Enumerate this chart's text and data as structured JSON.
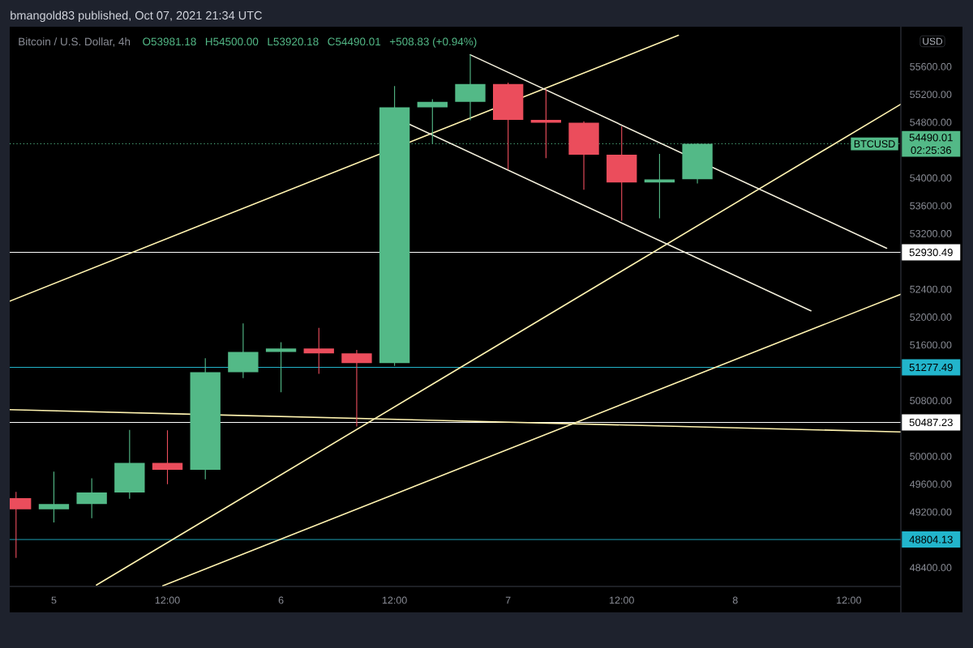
{
  "chart_data": {
    "type": "candlestick",
    "title": "bmangold83 published, Oct 07, 2021 21:34 UTC",
    "subtitle": "Bitcoin / U.S. Dollar, 4h",
    "ylabel": "USD",
    "x": [
      "2021-10-04T20:00",
      "2021-10-05T00:00",
      "2021-10-05T04:00",
      "2021-10-05T08:00",
      "2021-10-05T12:00",
      "2021-10-05T16:00",
      "2021-10-05T20:00",
      "2021-10-06T00:00",
      "2021-10-06T04:00",
      "2021-10-06T08:00",
      "2021-10-06T12:00",
      "2021-10-06T16:00",
      "2021-10-06T20:00",
      "2021-10-07T00:00",
      "2021-10-07T04:00",
      "2021-10-07T08:00",
      "2021-10-07T12:00",
      "2021-10-07T16:00",
      "2021-10-07T20:00"
    ],
    "ohlc": [
      [
        49400,
        49490,
        48540,
        49240
      ],
      [
        49240,
        49780,
        49050,
        49315
      ],
      [
        49315,
        49685,
        49110,
        49480
      ],
      [
        49480,
        50380,
        49390,
        49905
      ],
      [
        49905,
        50375,
        49600,
        49805
      ],
      [
        49805,
        51410,
        49670,
        51210
      ],
      [
        51210,
        51910,
        51125,
        51500
      ],
      [
        51500,
        51640,
        50920,
        51550
      ],
      [
        51550,
        51845,
        51185,
        51480
      ],
      [
        51480,
        51530,
        50430,
        51340
      ],
      [
        51340,
        55320,
        51300,
        55015
      ],
      [
        55015,
        55130,
        54490,
        55095
      ],
      [
        55095,
        55775,
        54830,
        55350
      ],
      [
        55350,
        55370,
        54120,
        54835
      ],
      [
        54835,
        55275,
        54285,
        54795
      ],
      [
        54795,
        54815,
        53830,
        54335
      ],
      [
        54335,
        54740,
        53385,
        53935
      ],
      [
        53935,
        54345,
        53420,
        53980
      ],
      [
        53981.18,
        54500.0,
        53920.18,
        54490.01
      ]
    ],
    "colors": [
      "#eb4d5c",
      "#53b987",
      "#53b987",
      "#53b987",
      "#eb4d5c",
      "#53b987",
      "#53b987",
      "#53b987",
      "#eb4d5c",
      "#eb4d5c",
      "#53b987",
      "#53b987",
      "#53b987",
      "#eb4d5c",
      "#eb4d5c",
      "#eb4d5c",
      "#eb4d5c",
      "#53b987",
      "#53b987"
    ],
    "series": [
      {
        "type": "line",
        "color": "#fff3b0",
        "x": [
          "2021-10-04T19:20",
          "2021-10-07T18:00"
        ],
        "values": [
          52230,
          56050
        ]
      },
      {
        "type": "line",
        "color": "#fff3b0",
        "x": [
          "2021-10-05T04:30",
          "2021-10-08T17:30"
        ],
        "values": [
          48150,
          55060
        ]
      },
      {
        "type": "line",
        "color": "#fff3b0",
        "x": [
          "2021-10-05T11:30",
          "2021-10-08T17:30"
        ],
        "values": [
          48140,
          52330
        ]
      },
      {
        "type": "line",
        "color": "#fff3b0",
        "x": [
          "2021-10-04T19:20",
          "2021-10-08T17:30"
        ],
        "values": [
          50670,
          50350
        ]
      },
      {
        "type": "line",
        "color": "#f3efdc",
        "x": [
          "2021-10-06T20:00",
          "2021-10-08T16:00"
        ],
        "values": [
          55770,
          52990
        ]
      },
      {
        "type": "line",
        "color": "#f3efdc",
        "x": [
          "2021-10-06T13:35",
          "2021-10-08T08:00"
        ],
        "values": [
          54770,
          52090
        ]
      }
    ],
    "ref_lines": [
      {
        "axis": "y",
        "value": 54490.01,
        "label": "54490.01",
        "color": "#53b987",
        "line_style": "dotted"
      },
      {
        "axis": "y",
        "value": 52930.49,
        "label": "52930.49",
        "color": "#ffffff",
        "line_style": "solid"
      },
      {
        "axis": "y",
        "value": 51277.49,
        "label": "51277.49",
        "color": "#22b5cc",
        "line_style": "solid"
      },
      {
        "axis": "y",
        "value": 50487.23,
        "label": "50487.23",
        "color": "#ffffff",
        "line_style": "solid"
      },
      {
        "axis": "y",
        "value": 48804.13,
        "label": "48804.13",
        "color": "#22b5cc",
        "line_style": "solid"
      }
    ],
    "annotations": [
      "O53981.18",
      "H54500.00",
      "L53920.18",
      "C54490.01",
      "+508.83 (+0.94%)",
      {
        "text": "BTCUSD",
        "y": 54490.01
      },
      "02:25:36"
    ],
    "xlim": [
      "2021-10-04T19:20",
      "2021-10-08T17:30"
    ],
    "ylim": [
      48130,
      56150
    ],
    "xticks": [
      {
        "value": "2021-10-05",
        "label": "5"
      },
      {
        "value": "2021-10-05T12:00",
        "label": "12:00"
      },
      {
        "value": "2021-10-06",
        "label": "6"
      },
      {
        "value": "2021-10-06T12:00",
        "label": "12:00"
      },
      {
        "value": "2021-10-07",
        "label": "7"
      },
      {
        "value": "2021-10-07T12:00",
        "label": "12:00"
      },
      {
        "value": "2021-10-08",
        "label": "8"
      },
      {
        "value": "2021-10-08T12:00",
        "label": "12:00"
      }
    ],
    "yticks": [
      {
        "value": 48400,
        "label": "48400.00"
      },
      {
        "value": 49200,
        "label": "49200.00"
      },
      {
        "value": 49600,
        "label": "49600.00"
      },
      {
        "value": 50000,
        "label": "50000.00"
      },
      {
        "value": 50800,
        "label": "50800.00"
      },
      {
        "value": 51600,
        "label": "51600.00"
      },
      {
        "value": 52000,
        "label": "52000.00"
      },
      {
        "value": 52400,
        "label": "52400.00"
      },
      {
        "value": 53200,
        "label": "53200.00"
      },
      {
        "value": 53600,
        "label": "53600.00"
      },
      {
        "value": 54000,
        "label": "54000.00"
      },
      {
        "value": 54800,
        "label": "54800.00"
      },
      {
        "value": 55200,
        "label": "55200.00"
      },
      {
        "value": 55600,
        "label": "55600.00"
      }
    ]
  }
}
